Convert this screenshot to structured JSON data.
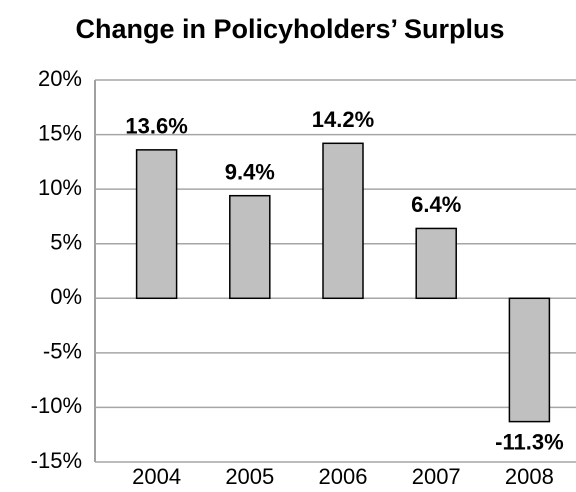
{
  "chart_data": {
    "type": "bar",
    "title": "Change in Policyholders’ Surplus",
    "categories": [
      "2004",
      "2005",
      "2006",
      "2007",
      "2008"
    ],
    "values": [
      13.6,
      9.4,
      14.2,
      6.4,
      -11.3
    ],
    "value_labels": [
      "13.6%",
      "9.4%",
      "14.2%",
      "6.4%",
      "-11.3%"
    ],
    "color": "#c0c0c0",
    "ylim": [
      -15,
      20
    ],
    "yticks": [
      {
        "value": -15,
        "label": "-15%"
      },
      {
        "value": -10,
        "label": "-10%"
      },
      {
        "value": -5,
        "label": "-5%"
      },
      {
        "value": 0,
        "label": "0%"
      },
      {
        "value": 5,
        "label": "5%"
      },
      {
        "value": 10,
        "label": "10%"
      },
      {
        "value": 15,
        "label": "15%"
      },
      {
        "value": 20,
        "label": "20%"
      }
    ],
    "grid": true
  }
}
